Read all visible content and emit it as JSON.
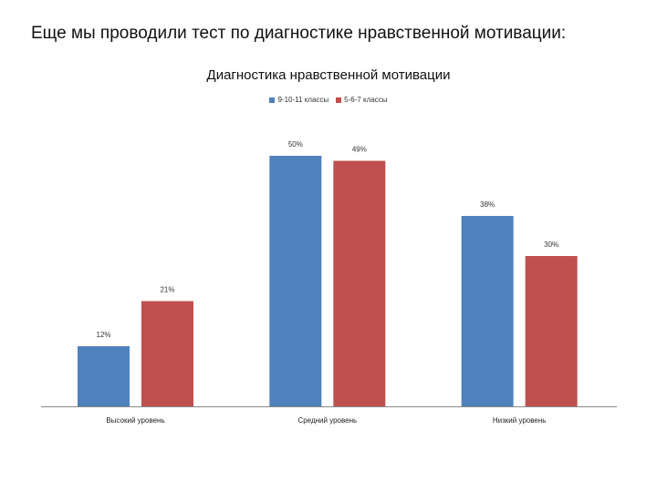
{
  "slide": {
    "heading": "Еще мы проводили тест по диагностике нравственной мотивации:"
  },
  "chart_data": {
    "type": "bar",
    "title": "Диагностика нравственной мотивации",
    "categories": [
      "Высокий уровень",
      "Средний уровень",
      "Низкий уровень"
    ],
    "series": [
      {
        "name": "9-10-11 классы",
        "color": "#4F81BD",
        "values": [
          12,
          50,
          38
        ],
        "labels": [
          "12%",
          "50%",
          "38%"
        ]
      },
      {
        "name": "5-6-7 классы",
        "color": "#C0504D",
        "values": [
          21,
          49,
          30
        ],
        "labels": [
          "21%",
          "49%",
          "30%"
        ]
      }
    ],
    "ylim": [
      0,
      55
    ],
    "unit": "%",
    "legend_position": "top",
    "grid": false,
    "xlabel": "",
    "ylabel": ""
  }
}
